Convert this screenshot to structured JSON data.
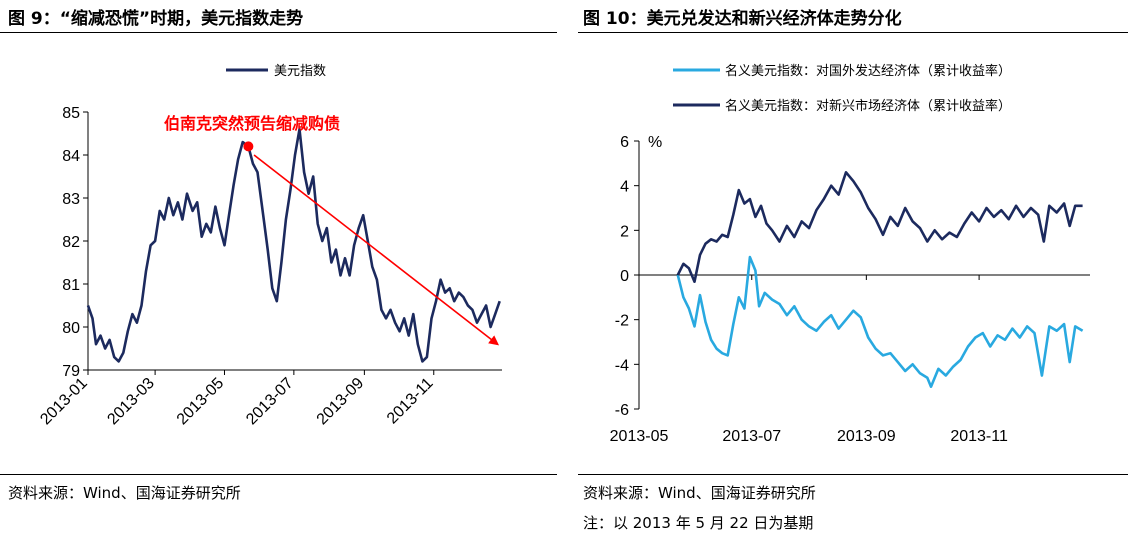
{
  "left_figure": {
    "title": "图 9：“缩减恐慌”时期，美元指数走势",
    "source": "资料来源：Wind、国海证券研究所"
  },
  "right_figure": {
    "title": "图 10：美元兑发达和新兴经济体走势分化",
    "source": "资料来源：Wind、国海证券研究所",
    "note": "注：以 2013 年 5 月 22 日为基期"
  },
  "chart_data": [
    {
      "type": "line",
      "title": "",
      "xlabel": "",
      "ylabel": "",
      "ylim": [
        79,
        85
      ],
      "yticks": [
        "79",
        "80",
        "81",
        "82",
        "83",
        "84",
        "85"
      ],
      "xticks": [
        "2013-01",
        "2013-03",
        "2013-05",
        "2013-07",
        "2013-09",
        "2013-11"
      ],
      "grid": false,
      "legend": "top-center",
      "annotation": {
        "text": "伯南克突然预告缩减购债",
        "marker": {
          "x": "2013-05-22",
          "y": 84.2
        },
        "arrow_from": {
          "x": "2013-05-27",
          "y": 84.0
        },
        "arrow_to": {
          "x": "2013-12-27",
          "y": 79.6
        },
        "color": "#ff0000"
      },
      "series": [
        {
          "name": "美元指数",
          "color": "#1c2a5e",
          "points": [
            [
              "2013-01-01",
              80.5
            ],
            [
              "2013-01-05",
              80.2
            ],
            [
              "2013-01-08",
              79.6
            ],
            [
              "2013-01-12",
              79.8
            ],
            [
              "2013-01-16",
              79.5
            ],
            [
              "2013-01-20",
              79.7
            ],
            [
              "2013-01-24",
              79.3
            ],
            [
              "2013-01-28",
              79.2
            ],
            [
              "2013-02-01",
              79.4
            ],
            [
              "2013-02-05",
              79.9
            ],
            [
              "2013-02-09",
              80.3
            ],
            [
              "2013-02-13",
              80.1
            ],
            [
              "2013-02-17",
              80.5
            ],
            [
              "2013-02-21",
              81.3
            ],
            [
              "2013-02-25",
              81.9
            ],
            [
              "2013-03-01",
              82.0
            ],
            [
              "2013-03-05",
              82.7
            ],
            [
              "2013-03-09",
              82.5
            ],
            [
              "2013-03-13",
              83.0
            ],
            [
              "2013-03-17",
              82.6
            ],
            [
              "2013-03-21",
              82.9
            ],
            [
              "2013-03-25",
              82.5
            ],
            [
              "2013-03-29",
              83.1
            ],
            [
              "2013-04-03",
              82.7
            ],
            [
              "2013-04-07",
              82.9
            ],
            [
              "2013-04-11",
              82.1
            ],
            [
              "2013-04-15",
              82.4
            ],
            [
              "2013-04-19",
              82.2
            ],
            [
              "2013-04-23",
              82.8
            ],
            [
              "2013-04-27",
              82.3
            ],
            [
              "2013-05-01",
              81.9
            ],
            [
              "2013-05-05",
              82.6
            ],
            [
              "2013-05-09",
              83.3
            ],
            [
              "2013-05-13",
              83.9
            ],
            [
              "2013-05-17",
              84.3
            ],
            [
              "2013-05-22",
              84.2
            ],
            [
              "2013-05-26",
              83.8
            ],
            [
              "2013-05-30",
              83.6
            ],
            [
              "2013-06-04",
              82.6
            ],
            [
              "2013-06-08",
              81.8
            ],
            [
              "2013-06-12",
              80.9
            ],
            [
              "2013-06-16",
              80.6
            ],
            [
              "2013-06-20",
              81.5
            ],
            [
              "2013-06-24",
              82.5
            ],
            [
              "2013-06-28",
              83.2
            ],
            [
              "2013-07-02",
              84.0
            ],
            [
              "2013-07-06",
              84.6
            ],
            [
              "2013-07-10",
              83.6
            ],
            [
              "2013-07-14",
              83.1
            ],
            [
              "2013-07-18",
              83.5
            ],
            [
              "2013-07-22",
              82.4
            ],
            [
              "2013-07-26",
              82.0
            ],
            [
              "2013-07-30",
              82.3
            ],
            [
              "2013-08-03",
              81.5
            ],
            [
              "2013-08-07",
              81.8
            ],
            [
              "2013-08-11",
              81.2
            ],
            [
              "2013-08-15",
              81.6
            ],
            [
              "2013-08-19",
              81.2
            ],
            [
              "2013-08-23",
              81.9
            ],
            [
              "2013-08-27",
              82.3
            ],
            [
              "2013-08-31",
              82.6
            ],
            [
              "2013-09-04",
              82.0
            ],
            [
              "2013-09-08",
              81.4
            ],
            [
              "2013-09-12",
              81.1
            ],
            [
              "2013-09-16",
              80.4
            ],
            [
              "2013-09-20",
              80.2
            ],
            [
              "2013-09-24",
              80.4
            ],
            [
              "2013-09-28",
              80.1
            ],
            [
              "2013-10-02",
              79.9
            ],
            [
              "2013-10-06",
              80.2
            ],
            [
              "2013-10-10",
              79.8
            ],
            [
              "2013-10-14",
              80.3
            ],
            [
              "2013-10-18",
              79.6
            ],
            [
              "2013-10-22",
              79.2
            ],
            [
              "2013-10-26",
              79.3
            ],
            [
              "2013-10-30",
              80.2
            ],
            [
              "2013-11-03",
              80.6
            ],
            [
              "2013-11-07",
              81.1
            ],
            [
              "2013-11-11",
              80.8
            ],
            [
              "2013-11-15",
              80.9
            ],
            [
              "2013-11-19",
              80.6
            ],
            [
              "2013-11-23",
              80.8
            ],
            [
              "2013-11-27",
              80.7
            ],
            [
              "2013-12-01",
              80.5
            ],
            [
              "2013-12-05",
              80.4
            ],
            [
              "2013-12-09",
              80.1
            ],
            [
              "2013-12-13",
              80.3
            ],
            [
              "2013-12-17",
              80.5
            ],
            [
              "2013-12-21",
              80.0
            ],
            [
              "2013-12-25",
              80.3
            ],
            [
              "2013-12-29",
              80.6
            ]
          ]
        }
      ]
    },
    {
      "type": "line",
      "title": "",
      "xlabel": "",
      "ylabel": "%",
      "ylim": [
        -6,
        6
      ],
      "yticks": [
        "-6",
        "-4",
        "-2",
        "0",
        "2",
        "4",
        "6"
      ],
      "xticks": [
        "2013-05",
        "2013-07",
        "2013-09",
        "2013-11"
      ],
      "grid": false,
      "legend": "top",
      "series": [
        {
          "name": "名义美元指数：对国外发达经济体（累计收益率）",
          "color": "#29a9e0",
          "points": [
            [
              "2013-05-22",
              0.0
            ],
            [
              "2013-05-25",
              -1.0
            ],
            [
              "2013-05-28",
              -1.5
            ],
            [
              "2013-05-31",
              -2.3
            ],
            [
              "2013-06-03",
              -0.9
            ],
            [
              "2013-06-06",
              -2.1
            ],
            [
              "2013-06-09",
              -2.9
            ],
            [
              "2013-06-12",
              -3.3
            ],
            [
              "2013-06-15",
              -3.5
            ],
            [
              "2013-06-18",
              -3.6
            ],
            [
              "2013-06-21",
              -2.2
            ],
            [
              "2013-06-24",
              -1.0
            ],
            [
              "2013-06-27",
              -1.5
            ],
            [
              "2013-06-30",
              0.8
            ],
            [
              "2013-07-03",
              0.2
            ],
            [
              "2013-07-05",
              -1.4
            ],
            [
              "2013-07-08",
              -0.8
            ],
            [
              "2013-07-12",
              -1.1
            ],
            [
              "2013-07-16",
              -1.3
            ],
            [
              "2013-07-20",
              -1.8
            ],
            [
              "2013-07-24",
              -1.4
            ],
            [
              "2013-07-28",
              -2.0
            ],
            [
              "2013-08-01",
              -2.3
            ],
            [
              "2013-08-05",
              -2.5
            ],
            [
              "2013-08-09",
              -2.1
            ],
            [
              "2013-08-13",
              -1.8
            ],
            [
              "2013-08-17",
              -2.4
            ],
            [
              "2013-08-21",
              -2.0
            ],
            [
              "2013-08-25",
              -1.6
            ],
            [
              "2013-08-29",
              -1.9
            ],
            [
              "2013-09-02",
              -2.8
            ],
            [
              "2013-09-06",
              -3.3
            ],
            [
              "2013-09-10",
              -3.6
            ],
            [
              "2013-09-14",
              -3.5
            ],
            [
              "2013-09-18",
              -3.9
            ],
            [
              "2013-09-22",
              -4.3
            ],
            [
              "2013-09-26",
              -4.0
            ],
            [
              "2013-09-30",
              -4.4
            ],
            [
              "2013-10-04",
              -4.6
            ],
            [
              "2013-10-06",
              -5.0
            ],
            [
              "2013-10-10",
              -4.2
            ],
            [
              "2013-10-14",
              -4.5
            ],
            [
              "2013-10-18",
              -4.1
            ],
            [
              "2013-10-22",
              -3.8
            ],
            [
              "2013-10-26",
              -3.2
            ],
            [
              "2013-10-30",
              -2.8
            ],
            [
              "2013-11-03",
              -2.6
            ],
            [
              "2013-11-07",
              -3.2
            ],
            [
              "2013-11-11",
              -2.7
            ],
            [
              "2013-11-15",
              -2.9
            ],
            [
              "2013-11-19",
              -2.4
            ],
            [
              "2013-11-23",
              -2.8
            ],
            [
              "2013-11-27",
              -2.3
            ],
            [
              "2013-12-01",
              -2.6
            ],
            [
              "2013-12-05",
              -4.5
            ],
            [
              "2013-12-09",
              -2.3
            ],
            [
              "2013-12-13",
              -2.5
            ],
            [
              "2013-12-17",
              -2.2
            ],
            [
              "2013-12-20",
              -3.9
            ],
            [
              "2013-12-23",
              -2.3
            ],
            [
              "2013-12-27",
              -2.5
            ]
          ]
        },
        {
          "name": "名义美元指数：对新兴市场经济体（累计收益率）",
          "color": "#1c2a5e",
          "points": [
            [
              "2013-05-22",
              0.0
            ],
            [
              "2013-05-25",
              0.5
            ],
            [
              "2013-05-28",
              0.3
            ],
            [
              "2013-05-31",
              -0.3
            ],
            [
              "2013-06-03",
              0.9
            ],
            [
              "2013-06-06",
              1.4
            ],
            [
              "2013-06-09",
              1.6
            ],
            [
              "2013-06-12",
              1.5
            ],
            [
              "2013-06-15",
              1.8
            ],
            [
              "2013-06-18",
              1.7
            ],
            [
              "2013-06-21",
              2.7
            ],
            [
              "2013-06-24",
              3.8
            ],
            [
              "2013-06-27",
              3.2
            ],
            [
              "2013-06-30",
              3.4
            ],
            [
              "2013-07-03",
              2.6
            ],
            [
              "2013-07-06",
              3.1
            ],
            [
              "2013-07-09",
              2.3
            ],
            [
              "2013-07-12",
              2.0
            ],
            [
              "2013-07-16",
              1.5
            ],
            [
              "2013-07-20",
              2.2
            ],
            [
              "2013-07-24",
              1.7
            ],
            [
              "2013-07-28",
              2.4
            ],
            [
              "2013-08-01",
              2.1
            ],
            [
              "2013-08-05",
              2.9
            ],
            [
              "2013-08-09",
              3.4
            ],
            [
              "2013-08-13",
              4.0
            ],
            [
              "2013-08-17",
              3.6
            ],
            [
              "2013-08-21",
              4.6
            ],
            [
              "2013-08-25",
              4.2
            ],
            [
              "2013-08-29",
              3.7
            ],
            [
              "2013-09-02",
              3.0
            ],
            [
              "2013-09-06",
              2.5
            ],
            [
              "2013-09-10",
              1.8
            ],
            [
              "2013-09-14",
              2.6
            ],
            [
              "2013-09-18",
              2.2
            ],
            [
              "2013-09-22",
              3.0
            ],
            [
              "2013-09-26",
              2.4
            ],
            [
              "2013-09-30",
              2.1
            ],
            [
              "2013-10-04",
              1.5
            ],
            [
              "2013-10-08",
              2.0
            ],
            [
              "2013-10-12",
              1.6
            ],
            [
              "2013-10-16",
              1.9
            ],
            [
              "2013-10-20",
              1.7
            ],
            [
              "2013-10-24",
              2.3
            ],
            [
              "2013-10-28",
              2.8
            ],
            [
              "2013-11-01",
              2.4
            ],
            [
              "2013-11-05",
              3.0
            ],
            [
              "2013-11-09",
              2.6
            ],
            [
              "2013-11-13",
              2.9
            ],
            [
              "2013-11-17",
              2.5
            ],
            [
              "2013-11-21",
              3.1
            ],
            [
              "2013-11-25",
              2.6
            ],
            [
              "2013-11-29",
              3.0
            ],
            [
              "2013-12-03",
              2.7
            ],
            [
              "2013-12-06",
              1.5
            ],
            [
              "2013-12-09",
              3.1
            ],
            [
              "2013-12-13",
              2.8
            ],
            [
              "2013-12-17",
              3.2
            ],
            [
              "2013-12-20",
              2.2
            ],
            [
              "2013-12-23",
              3.1
            ],
            [
              "2013-12-27",
              3.1
            ]
          ]
        }
      ]
    }
  ]
}
